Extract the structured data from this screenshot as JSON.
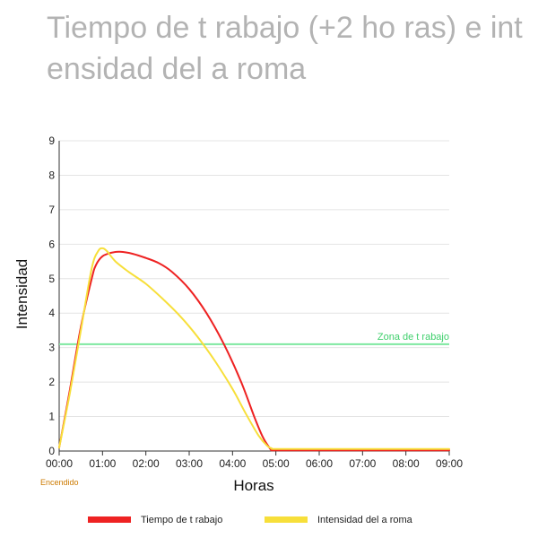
{
  "chart_data": {
    "type": "line",
    "title": "Tiempo de t  rabajo (+2 ho ras) e int ensidad del a roma",
    "xlabel": "Horas",
    "ylabel": "Intensidad",
    "xlim": [
      0,
      9
    ],
    "ylim": [
      0,
      9
    ],
    "x_tick_labels": [
      "00:00",
      "01:00",
      "02:00",
      "03:00",
      "04:00",
      "05:00",
      "06:00",
      "07:00",
      "08:00",
      "09:00"
    ],
    "y_ticks": [
      0,
      1,
      2,
      3,
      4,
      5,
      6,
      7,
      8,
      9
    ],
    "grid": true,
    "annotations": [
      {
        "text": "Encendido",
        "x": 0
      }
    ],
    "reference_line": {
      "label": "Zona de t rabajo",
      "y": 3.1,
      "color": "#7ee8a0"
    },
    "series": [
      {
        "name": "Tiempo de t  rabajo",
        "color": "#ee2222",
        "x": [
          0,
          0.25,
          0.5,
          0.75,
          0.85,
          1.0,
          1.2,
          1.4,
          1.7,
          2.0,
          2.3,
          2.6,
          3.0,
          3.4,
          3.8,
          4.2,
          4.5,
          4.7,
          4.85,
          4.9,
          5.0,
          6.0,
          9.0
        ],
        "y": [
          0.1,
          1.8,
          3.6,
          5.0,
          5.4,
          5.65,
          5.75,
          5.78,
          5.72,
          5.6,
          5.45,
          5.2,
          4.7,
          4.0,
          3.1,
          2.0,
          1.0,
          0.4,
          0.1,
          0.03,
          0.02,
          0.02,
          0.02
        ]
      },
      {
        "name": "Intensidad del a roma",
        "color": "#f7df3a",
        "x": [
          0,
          0.25,
          0.5,
          0.75,
          0.9,
          1.0,
          1.1,
          1.3,
          1.6,
          2.0,
          2.4,
          2.8,
          3.2,
          3.6,
          4.0,
          4.3,
          4.6,
          4.8,
          4.9,
          5.0,
          6.0,
          9.0
        ],
        "y": [
          0.1,
          1.7,
          3.5,
          5.3,
          5.8,
          5.88,
          5.8,
          5.5,
          5.2,
          4.85,
          4.4,
          3.9,
          3.3,
          2.6,
          1.8,
          1.1,
          0.45,
          0.15,
          0.08,
          0.06,
          0.06,
          0.06
        ]
      }
    ]
  }
}
